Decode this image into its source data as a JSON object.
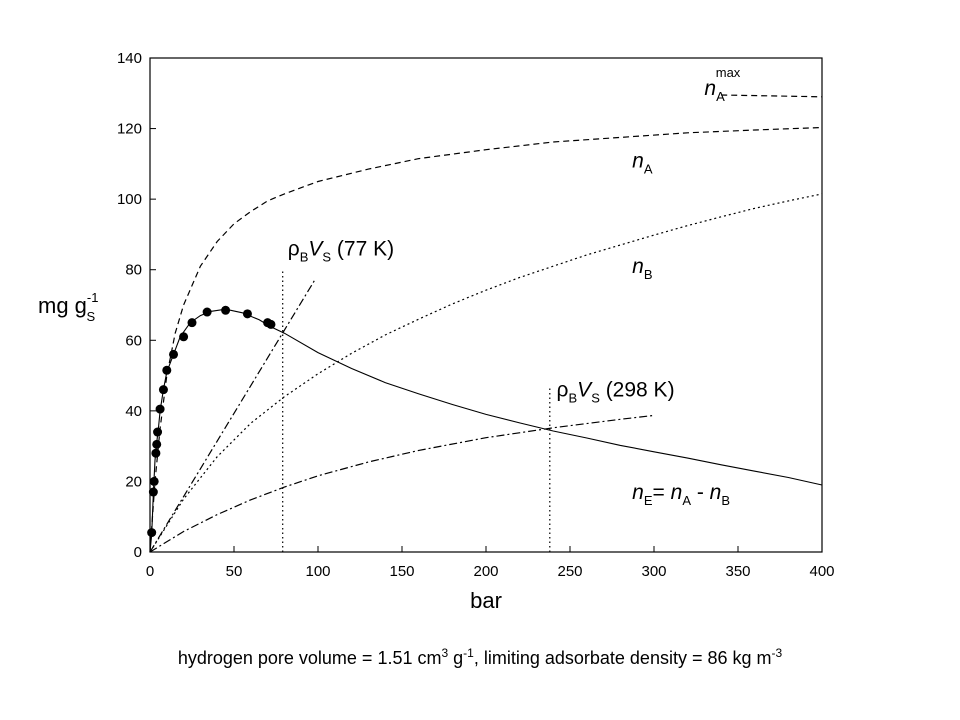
{
  "caption": {
    "part1": "hydrogen pore volume = 1.51 cm",
    "sup1": "3",
    "part2": " g",
    "sup2": "-1",
    "part3": ", limiting adsorbate density = 86 kg m",
    "sup3": "-3"
  },
  "chart_data": {
    "type": "line",
    "xlabel": "bar",
    "ylabel": {
      "main": "mg g",
      "sub": "S",
      "sup": "-1"
    },
    "xlim": [
      0,
      400
    ],
    "ylim": [
      0,
      140
    ],
    "xticks": [
      0,
      50,
      100,
      150,
      200,
      250,
      300,
      350,
      400
    ],
    "yticks": [
      0,
      20,
      40,
      60,
      80,
      100,
      120,
      140
    ],
    "grid": false,
    "legend": "none",
    "series": [
      {
        "key": "nE",
        "style": "solid",
        "markers": false,
        "points": [
          [
            0,
            0
          ],
          [
            1,
            5
          ],
          [
            2,
            17
          ],
          [
            3,
            26
          ],
          [
            4,
            31
          ],
          [
            5,
            35
          ],
          [
            6,
            40
          ],
          [
            8,
            46
          ],
          [
            10,
            51
          ],
          [
            14,
            56
          ],
          [
            18,
            61
          ],
          [
            24,
            65
          ],
          [
            30,
            67
          ],
          [
            36,
            68.2
          ],
          [
            45,
            68.8
          ],
          [
            55,
            67.8
          ],
          [
            65,
            65.8
          ],
          [
            72,
            63.8
          ],
          [
            80,
            62
          ],
          [
            100,
            56.5
          ],
          [
            120,
            52
          ],
          [
            140,
            48
          ],
          [
            160,
            44.8
          ],
          [
            180,
            41.8
          ],
          [
            200,
            39
          ],
          [
            220,
            36.6
          ],
          [
            240,
            34.3
          ],
          [
            260,
            32.3
          ],
          [
            280,
            30.2
          ],
          [
            300,
            28.4
          ],
          [
            320,
            26.6
          ],
          [
            340,
            24.7
          ],
          [
            360,
            22.9
          ],
          [
            380,
            21.1
          ],
          [
            400,
            19
          ]
        ]
      },
      {
        "key": "nE_measured",
        "style": "markers",
        "markers": true,
        "points": [
          [
            1,
            5.5
          ],
          [
            2,
            17
          ],
          [
            2.5,
            20
          ],
          [
            3.5,
            28
          ],
          [
            4,
            30.5
          ],
          [
            4.5,
            34
          ],
          [
            6,
            40.5
          ],
          [
            8,
            46
          ],
          [
            10,
            51.5
          ],
          [
            14,
            56
          ],
          [
            20,
            61
          ],
          [
            25,
            65
          ],
          [
            34,
            68
          ],
          [
            45,
            68.5
          ],
          [
            58,
            67.5
          ],
          [
            70,
            65
          ],
          [
            72,
            64.5
          ]
        ]
      },
      {
        "key": "nA",
        "style": "dashed",
        "markers": false,
        "points": [
          [
            0,
            0
          ],
          [
            3,
            20
          ],
          [
            6,
            35
          ],
          [
            10,
            50
          ],
          [
            15,
            62
          ],
          [
            20,
            70
          ],
          [
            30,
            81
          ],
          [
            40,
            88
          ],
          [
            50,
            93
          ],
          [
            60,
            96.5
          ],
          [
            70,
            99.5
          ],
          [
            80,
            101.5
          ],
          [
            100,
            105
          ],
          [
            130,
            108.5
          ],
          [
            160,
            111.5
          ],
          [
            200,
            114
          ],
          [
            240,
            116.2
          ],
          [
            280,
            117.5
          ],
          [
            320,
            118.8
          ],
          [
            360,
            119.6
          ],
          [
            400,
            120.3
          ]
        ]
      },
      {
        "key": "nA_max",
        "style": "dashed",
        "markers": false,
        "points": [
          [
            340,
            129.5
          ],
          [
            400,
            129
          ]
        ]
      },
      {
        "key": "nB",
        "style": "dotted",
        "markers": false,
        "points": [
          [
            0,
            0
          ],
          [
            20,
            15
          ],
          [
            40,
            27
          ],
          [
            60,
            36.5
          ],
          [
            80,
            44
          ],
          [
            100,
            50.5
          ],
          [
            120,
            56.3
          ],
          [
            140,
            61.5
          ],
          [
            160,
            66
          ],
          [
            180,
            70.3
          ],
          [
            200,
            74.2
          ],
          [
            220,
            77.8
          ],
          [
            240,
            81
          ],
          [
            260,
            84.2
          ],
          [
            280,
            87
          ],
          [
            300,
            89.8
          ],
          [
            320,
            92.5
          ],
          [
            340,
            95
          ],
          [
            360,
            97.4
          ],
          [
            380,
            99.5
          ],
          [
            400,
            101.5
          ]
        ]
      },
      {
        "key": "rhoBVS_77K",
        "style": "dash-dot",
        "markers": false,
        "points": [
          [
            0,
            0
          ],
          [
            98,
            77
          ]
        ]
      },
      {
        "key": "rhoBVS_298K",
        "style": "dash-dot",
        "markers": false,
        "points": [
          [
            0,
            0
          ],
          [
            20,
            5.8
          ],
          [
            40,
            10.6
          ],
          [
            60,
            14.8
          ],
          [
            80,
            18.4
          ],
          [
            100,
            21.6
          ],
          [
            130,
            25.5
          ],
          [
            160,
            28.8
          ],
          [
            200,
            32.4
          ],
          [
            240,
            35.2
          ],
          [
            280,
            37.6
          ],
          [
            300,
            38.7
          ]
        ]
      },
      {
        "key": "vline_80",
        "style": "vertical-dotted",
        "markers": false,
        "points": [
          [
            79,
            0
          ],
          [
            79,
            80
          ]
        ]
      },
      {
        "key": "vline_238",
        "style": "vertical-dotted",
        "markers": false,
        "points": [
          [
            238,
            0
          ],
          [
            238,
            47
          ]
        ]
      }
    ],
    "annotations": [
      {
        "key": "nA_max",
        "x": 330,
        "y": 129.5,
        "parts": [
          {
            "t": "n",
            "s": "ital"
          },
          {
            "t": "A",
            "s": "sub"
          },
          {
            "t": "max",
            "s": "sup"
          }
        ]
      },
      {
        "key": "nA",
        "x": 287,
        "y": 109,
        "parts": [
          {
            "t": "n",
            "s": "ital"
          },
          {
            "t": "A",
            "s": "sub"
          }
        ]
      },
      {
        "key": "nB",
        "x": 287,
        "y": 79,
        "parts": [
          {
            "t": "n",
            "s": "ital"
          },
          {
            "t": "B",
            "s": "sub"
          }
        ]
      },
      {
        "key": "nE",
        "x": 287,
        "y": 15,
        "parts": [
          {
            "t": "n",
            "s": "ital"
          },
          {
            "t": "E",
            "s": "sub"
          },
          {
            "t": "= ",
            "s": ""
          },
          {
            "t": "n",
            "s": "ital"
          },
          {
            "t": "A",
            "s": "sub"
          },
          {
            "t": " - ",
            "s": ""
          },
          {
            "t": "n",
            "s": "ital"
          },
          {
            "t": "B",
            "s": "sub"
          }
        ]
      },
      {
        "key": "rho77",
        "x": 82,
        "y": 84,
        "parts": [
          {
            "t": "ρ",
            "s": ""
          },
          {
            "t": "B",
            "s": "sub"
          },
          {
            "t": "V",
            "s": "ital"
          },
          {
            "t": "S",
            "s": "sub"
          },
          {
            "t": " (77 K)",
            "s": ""
          }
        ]
      },
      {
        "key": "rho298",
        "x": 242,
        "y": 44,
        "parts": [
          {
            "t": "ρ",
            "s": ""
          },
          {
            "t": "B",
            "s": "sub"
          },
          {
            "t": "V",
            "s": "ital"
          },
          {
            "t": "S",
            "s": "sub"
          },
          {
            "t": " (298 K)",
            "s": ""
          }
        ]
      }
    ]
  }
}
